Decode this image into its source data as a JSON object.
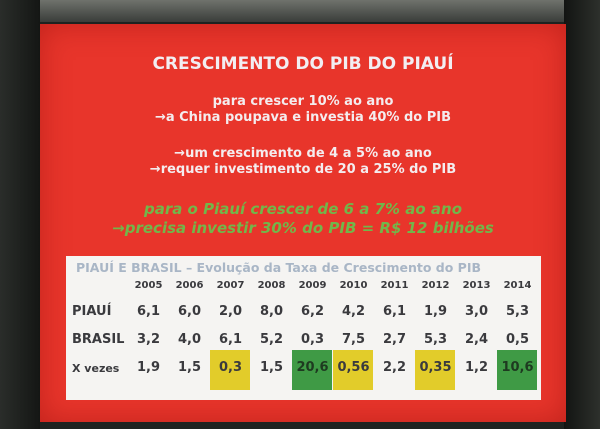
{
  "slide": {
    "title": "CRESCIMENTO DO PIB DO PIAUÍ",
    "lines": [
      "para crescer 10% ao ano",
      "→a China poupava e investia 40% do PIB",
      "→um crescimento de 4 a 5% ao ano",
      "→requer investimento de 20 a 25% do PIB"
    ],
    "highlight_lines": [
      "para o Piauí crescer de 6 a 7% ao ano",
      "→precisa investir 30% do PIB = R$ 12 bilhões"
    ],
    "colors": {
      "background": "#e8352b",
      "highlight_text": "#72b64a",
      "cell_yellow": "#e2cc2a",
      "cell_green": "#3f9a45"
    }
  },
  "table": {
    "title": "PIAUÍ E BRASIL – Evolução da Taxa de Crescimento do PIB",
    "years": [
      "2005",
      "2006",
      "2007",
      "2008",
      "2009",
      "2010",
      "2011",
      "2012",
      "2013",
      "2014"
    ],
    "rows": [
      {
        "label": "PIAUÍ",
        "values": [
          "6,1",
          "6,0",
          "2,0",
          "8,0",
          "6,2",
          "4,2",
          "6,1",
          "1,9",
          "3,0",
          "5,3"
        ]
      },
      {
        "label": "BRASIL",
        "values": [
          "3,2",
          "4,0",
          "6,1",
          "5,2",
          "0,3",
          "7,5",
          "2,7",
          "5,3",
          "2,4",
          "0,5"
        ]
      },
      {
        "label": "X vezes",
        "values": [
          "1,9",
          "1,5",
          "0,3",
          "1,5",
          "20,6",
          "0,56",
          "2,2",
          "0,35",
          "1,2",
          "10,6"
        ],
        "highlights": [
          "",
          "",
          "yellow",
          "",
          "green",
          "yellow",
          "",
          "yellow",
          "",
          "green"
        ]
      }
    ]
  }
}
